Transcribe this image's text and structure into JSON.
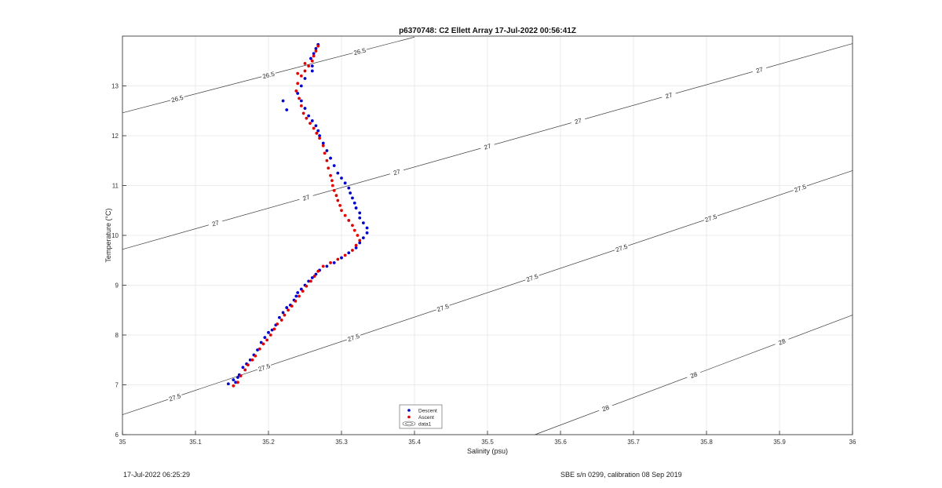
{
  "chart_data": {
    "type": "scatter",
    "title": "p6370748: C2 Ellett Array 17-Jul-2022 00:56:41Z",
    "xlabel": "Salinity (psu)",
    "ylabel": "Temperature (°C)",
    "xlim": [
      35,
      36
    ],
    "ylim": [
      6,
      14
    ],
    "xticks": [
      "35",
      "35.1",
      "35.2",
      "35.3",
      "35.4",
      "35.5",
      "35.6",
      "35.7",
      "35.8",
      "35.9",
      "36"
    ],
    "yticks": [
      "6",
      "7",
      "8",
      "9",
      "10",
      "11",
      "12",
      "13"
    ],
    "grid": true,
    "legend_position": "bottom-center",
    "legend": [
      {
        "label": "Descent",
        "marker": "dot",
        "color": "#0000cc"
      },
      {
        "label": "Ascent",
        "marker": "dot",
        "color": "#e00000"
      },
      {
        "label": "data1",
        "marker": "contour"
      }
    ],
    "contours": [
      {
        "label": "26.5",
        "lines": [
          [
            [
              35.0,
              12.46
            ],
            [
              35.4,
              13.98
            ]
          ]
        ]
      },
      {
        "label": "27",
        "lines": [
          [
            [
              35.0,
              9.72
            ],
            [
              36.0,
              13.85
            ]
          ]
        ]
      },
      {
        "label": "27.5",
        "lines": [
          [
            [
              35.0,
              6.4
            ],
            [
              36.0,
              11.3
            ]
          ]
        ]
      },
      {
        "label": "28",
        "lines": [
          [
            [
              35.565,
              6.0
            ],
            [
              36.0,
              8.4
            ]
          ]
        ]
      }
    ],
    "series": [
      {
        "name": "Descent",
        "color": "#0000cc",
        "points": [
          [
            35.145,
            7.02
          ],
          [
            35.152,
            7.1
          ],
          [
            35.155,
            7.05
          ],
          [
            35.16,
            7.2
          ],
          [
            35.158,
            7.15
          ],
          [
            35.165,
            7.35
          ],
          [
            35.17,
            7.42
          ],
          [
            35.175,
            7.5
          ],
          [
            35.18,
            7.6
          ],
          [
            35.185,
            7.7
          ],
          [
            35.19,
            7.85
          ],
          [
            35.195,
            7.95
          ],
          [
            35.2,
            8.05
          ],
          [
            35.205,
            8.1
          ],
          [
            35.21,
            8.2
          ],
          [
            35.215,
            8.35
          ],
          [
            35.22,
            8.45
          ],
          [
            35.225,
            8.55
          ],
          [
            35.23,
            8.6
          ],
          [
            35.235,
            8.7
          ],
          [
            35.238,
            8.78
          ],
          [
            35.24,
            8.85
          ],
          [
            35.245,
            8.92
          ],
          [
            35.25,
            9.0
          ],
          [
            35.255,
            9.08
          ],
          [
            35.26,
            9.15
          ],
          [
            35.265,
            9.22
          ],
          [
            35.27,
            9.3
          ],
          [
            35.28,
            9.38
          ],
          [
            35.29,
            9.45
          ],
          [
            35.3,
            9.55
          ],
          [
            35.31,
            9.65
          ],
          [
            35.32,
            9.75
          ],
          [
            35.325,
            9.85
          ],
          [
            35.33,
            9.95
          ],
          [
            35.335,
            10.05
          ],
          [
            35.335,
            10.15
          ],
          [
            35.33,
            10.25
          ],
          [
            35.325,
            10.35
          ],
          [
            35.325,
            10.45
          ],
          [
            35.32,
            10.55
          ],
          [
            35.318,
            10.65
          ],
          [
            35.315,
            10.75
          ],
          [
            35.312,
            10.85
          ],
          [
            35.31,
            10.95
          ],
          [
            35.305,
            11.05
          ],
          [
            35.3,
            11.15
          ],
          [
            35.295,
            11.25
          ],
          [
            35.29,
            11.4
          ],
          [
            35.285,
            11.55
          ],
          [
            35.28,
            11.7
          ],
          [
            35.275,
            11.85
          ],
          [
            35.27,
            12.0
          ],
          [
            35.268,
            12.1
          ],
          [
            35.265,
            12.2
          ],
          [
            35.26,
            12.3
          ],
          [
            35.255,
            12.4
          ],
          [
            35.25,
            12.55
          ],
          [
            35.245,
            12.7
          ],
          [
            35.24,
            12.85
          ],
          [
            35.245,
            13.0
          ],
          [
            35.25,
            13.15
          ],
          [
            35.26,
            13.3
          ],
          [
            35.26,
            13.4
          ],
          [
            35.258,
            13.55
          ],
          [
            35.262,
            13.65
          ],
          [
            35.265,
            13.75
          ],
          [
            35.268,
            13.83
          ],
          [
            35.225,
            12.52
          ],
          [
            35.22,
            12.7
          ]
        ]
      },
      {
        "name": "Ascent",
        "color": "#e00000",
        "points": [
          [
            35.152,
            6.98
          ],
          [
            35.158,
            7.05
          ],
          [
            35.162,
            7.18
          ],
          [
            35.168,
            7.3
          ],
          [
            35.172,
            7.4
          ],
          [
            35.178,
            7.5
          ],
          [
            35.182,
            7.58
          ],
          [
            35.188,
            7.72
          ],
          [
            35.193,
            7.82
          ],
          [
            35.198,
            7.9
          ],
          [
            35.203,
            8.0
          ],
          [
            35.208,
            8.12
          ],
          [
            35.212,
            8.22
          ],
          [
            35.218,
            8.3
          ],
          [
            35.222,
            8.4
          ],
          [
            35.227,
            8.5
          ],
          [
            35.232,
            8.58
          ],
          [
            35.237,
            8.68
          ],
          [
            35.242,
            8.78
          ],
          [
            35.247,
            8.88
          ],
          [
            35.252,
            8.98
          ],
          [
            35.258,
            9.08
          ],
          [
            35.263,
            9.18
          ],
          [
            35.268,
            9.28
          ],
          [
            35.275,
            9.38
          ],
          [
            35.285,
            9.45
          ],
          [
            35.295,
            9.52
          ],
          [
            35.305,
            9.6
          ],
          [
            35.315,
            9.7
          ],
          [
            35.32,
            9.8
          ],
          [
            35.325,
            9.9
          ],
          [
            35.322,
            10.0
          ],
          [
            35.318,
            10.1
          ],
          [
            35.315,
            10.2
          ],
          [
            35.31,
            10.3
          ],
          [
            35.305,
            10.4
          ],
          [
            35.3,
            10.5
          ],
          [
            35.298,
            10.6
          ],
          [
            35.295,
            10.7
          ],
          [
            35.293,
            10.8
          ],
          [
            35.29,
            10.9
          ],
          [
            35.288,
            11.0
          ],
          [
            35.287,
            11.1
          ],
          [
            35.285,
            11.2
          ],
          [
            35.282,
            11.35
          ],
          [
            35.28,
            11.5
          ],
          [
            35.277,
            11.65
          ],
          [
            35.275,
            11.8
          ],
          [
            35.27,
            11.95
          ],
          [
            35.266,
            12.05
          ],
          [
            35.262,
            12.15
          ],
          [
            35.257,
            12.25
          ],
          [
            35.252,
            12.35
          ],
          [
            35.248,
            12.45
          ],
          [
            35.245,
            12.6
          ],
          [
            35.242,
            12.75
          ],
          [
            35.238,
            12.9
          ],
          [
            35.24,
            13.05
          ],
          [
            35.245,
            13.2
          ],
          [
            35.25,
            13.3
          ],
          [
            35.255,
            13.4
          ],
          [
            35.26,
            13.5
          ],
          [
            35.262,
            13.6
          ],
          [
            35.265,
            13.7
          ],
          [
            35.268,
            13.8
          ],
          [
            35.25,
            13.45
          ],
          [
            35.24,
            13.25
          ]
        ]
      }
    ]
  },
  "footer": {
    "left": "17-Jul-2022 06:25:29",
    "right": "SBE s/n 0299, calibration 08 Sep 2019"
  }
}
